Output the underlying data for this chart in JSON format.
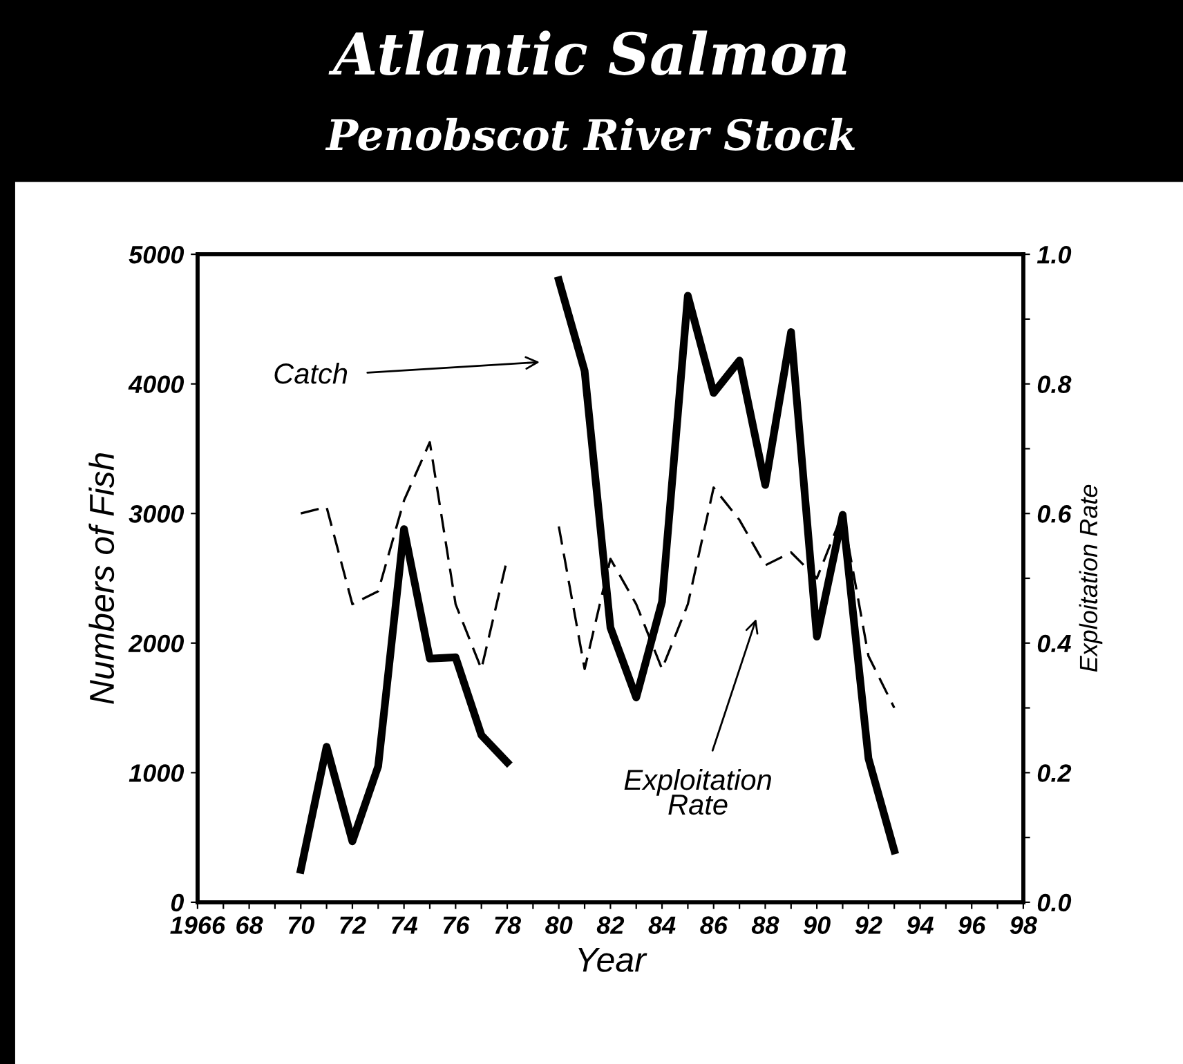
{
  "chart_data": {
    "type": "line",
    "title": "Atlantic Salmon",
    "subtitle": "Penobscot River Stock",
    "xlabel": "Year",
    "ylabel": "Numbers of Fish",
    "y2label": "Exploitation Rate",
    "x": [
      1970,
      1971,
      1972,
      1973,
      1974,
      1975,
      1976,
      1977,
      1978,
      1979,
      1980,
      1981,
      1982,
      1983,
      1984,
      1985,
      1986,
      1987,
      1988,
      1989,
      1990,
      1991,
      1992,
      1993
    ],
    "series": [
      {
        "color": "#000000",
        "line_style": "solid",
        "values": [
          250,
          1200,
          470,
          1050,
          2880,
          1880,
          1890,
          1290,
          1080,
          null,
          4800,
          4100,
          2120,
          1580,
          2320,
          4680,
          3930,
          4180,
          3220,
          4400,
          2050,
          2990,
          1110,
          400
        ]
      },
      {
        "color": "#000000",
        "line_style": "dashed",
        "axis": "y2",
        "values": [
          0.6,
          0.61,
          0.46,
          0.48,
          0.62,
          0.71,
          0.46,
          0.36,
          0.53,
          null,
          0.58,
          0.36,
          0.53,
          0.46,
          0.36,
          0.46,
          0.64,
          0.59,
          0.52,
          0.54,
          0.5,
          0.6,
          0.38,
          0.3
        ]
      }
    ],
    "annotations": [
      "Catch",
      "Exploitation\nRate"
    ],
    "xlim": [
      1966,
      1998
    ],
    "xticks": [
      {
        "value": 1966,
        "label": "1966"
      },
      {
        "value": 1967,
        "label": null
      },
      {
        "value": 1968,
        "label": "68"
      },
      {
        "value": 1969,
        "label": null
      },
      {
        "value": 1970,
        "label": "70"
      },
      {
        "value": 1971,
        "label": null
      },
      {
        "value": 1972,
        "label": "72"
      },
      {
        "value": 1973,
        "label": null
      },
      {
        "value": 1974,
        "label": "74"
      },
      {
        "value": 1975,
        "label": null
      },
      {
        "value": 1976,
        "label": "76"
      },
      {
        "value": 1977,
        "label": null
      },
      {
        "value": 1978,
        "label": "78"
      },
      {
        "value": 1979,
        "label": null
      },
      {
        "value": 1980,
        "label": "80"
      },
      {
        "value": 1981,
        "label": null
      },
      {
        "value": 1982,
        "label": "82"
      },
      {
        "value": 1983,
        "label": null
      },
      {
        "value": 1984,
        "label": "84"
      },
      {
        "value": 1985,
        "label": null
      },
      {
        "value": 1986,
        "label": "86"
      },
      {
        "value": 1987,
        "label": null
      },
      {
        "value": 1988,
        "label": "88"
      },
      {
        "value": 1989,
        "label": null
      },
      {
        "value": 1990,
        "label": "90"
      },
      {
        "value": 1991,
        "label": null
      },
      {
        "value": 1992,
        "label": "92"
      },
      {
        "value": 1993,
        "label": null
      },
      {
        "value": 1994,
        "label": "94"
      },
      {
        "value": 1995,
        "label": null
      },
      {
        "value": 1996,
        "label": "96"
      },
      {
        "value": 1997,
        "label": null
      },
      {
        "value": 1998,
        "label": "98"
      }
    ],
    "ylim": [
      0,
      5000
    ],
    "yticks": [
      0,
      1000,
      2000,
      3000,
      4000,
      5000
    ],
    "y2lim": [
      0,
      1.0
    ],
    "y2ticks": [
      {
        "value": 0,
        "label": "0.0"
      },
      {
        "value": 0.1,
        "label": null
      },
      {
        "value": 0.2,
        "label": "0.2"
      },
      {
        "value": 0.3,
        "label": null
      },
      {
        "value": 0.4,
        "label": "0.4"
      },
      {
        "value": 0.5,
        "label": null
      },
      {
        "value": 0.6,
        "label": "0.6"
      },
      {
        "value": 0.7,
        "label": null
      },
      {
        "value": 0.8,
        "label": "0.8"
      },
      {
        "value": 0.9,
        "label": null
      },
      {
        "value": 1.0,
        "label": "1.0"
      }
    ],
    "grid": false,
    "legend": false,
    "marker": "none"
  }
}
